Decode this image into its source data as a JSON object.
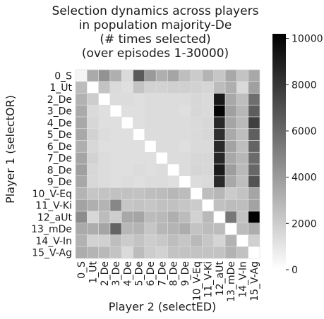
{
  "chart_data": {
    "type": "heatmap",
    "title_lines": [
      "Selection dynamics across players",
      "in population majority-De",
      "(# times selected)",
      "(over episodes 1-30000)"
    ],
    "xlabel": "Player 2 (selectED)",
    "ylabel": "Player 1 (selectOR)",
    "x_categories": [
      "0_S",
      "1_Ut",
      "2_De",
      "3_De",
      "4_De",
      "5_De",
      "6_De",
      "7_De",
      "8_De",
      "9_De",
      "10_V-Eq",
      "11_V-Ki",
      "12_aUt",
      "13_mDe",
      "14_V-In",
      "15_V-Ag"
    ],
    "y_categories": [
      "0_S",
      "1_Ut",
      "2_De",
      "3_De",
      "4_De",
      "5_De",
      "6_De",
      "7_De",
      "8_De",
      "9_De",
      "10_V-Eq",
      "11_V-Ki",
      "12_aUt",
      "13_mDe",
      "14_V-In",
      "15_V-Ag"
    ],
    "colorbar": {
      "min": 0,
      "max": 10200,
      "ticks": [
        0,
        2000,
        4000,
        6000,
        8000,
        10000
      ],
      "tick_labels": [
        "0",
        "2000",
        "4000",
        "6000",
        "8000",
        "10000"
      ],
      "colormap": "Greys (white = low, black = high)"
    },
    "values": [
      [
        400,
        3400,
        4300,
        3200,
        1500,
        6600,
        4100,
        3200,
        3600,
        2600,
        2100,
        3000,
        2300,
        3500,
        2400,
        3500
      ],
      [
        2700,
        0,
        2400,
        1500,
        1300,
        2400,
        1800,
        1800,
        1900,
        1900,
        1800,
        1700,
        2700,
        3200,
        1500,
        3800
      ],
      [
        3100,
        2000,
        0,
        1400,
        1400,
        1300,
        1400,
        1400,
        1400,
        1400,
        1600,
        1500,
        9200,
        3500,
        2600,
        5800
      ],
      [
        3400,
        1500,
        1300,
        0,
        1300,
        1300,
        1400,
        1400,
        1400,
        1300,
        1600,
        1500,
        10000,
        3800,
        2900,
        6500
      ],
      [
        3500,
        1600,
        1300,
        1300,
        0,
        1300,
        1400,
        1400,
        1400,
        1400,
        1500,
        1600,
        8600,
        3600,
        2800,
        7700
      ],
      [
        3500,
        1800,
        1400,
        1300,
        1300,
        0,
        1400,
        1400,
        1400,
        1400,
        1500,
        1600,
        8300,
        3400,
        2600,
        6400
      ],
      [
        3200,
        1600,
        1300,
        1300,
        1300,
        1300,
        0,
        1400,
        1400,
        1300,
        1500,
        1500,
        8500,
        3700,
        2600,
        6200
      ],
      [
        3600,
        1800,
        1400,
        1300,
        1300,
        1300,
        1300,
        0,
        1400,
        1400,
        1600,
        1600,
        8600,
        3500,
        2900,
        5900
      ],
      [
        3800,
        1600,
        1400,
        1300,
        1300,
        1400,
        1300,
        1400,
        0,
        1400,
        1700,
        1600,
        9100,
        3900,
        2800,
        6100
      ],
      [
        3500,
        1600,
        1400,
        1300,
        1400,
        1300,
        1400,
        1400,
        1300,
        0,
        1400,
        1500,
        8500,
        3500,
        2600,
        6900
      ],
      [
        3000,
        2300,
        2400,
        2500,
        2500,
        2400,
        2600,
        2700,
        2900,
        2700,
        0,
        2600,
        2900,
        2100,
        2400,
        3600
      ],
      [
        3700,
        3200,
        3000,
        4800,
        2300,
        2400,
        2300,
        2500,
        2500,
        2300,
        2100,
        0,
        2500,
        2700,
        2600,
        3700
      ],
      [
        4600,
        1600,
        2700,
        2000,
        3500,
        3600,
        2700,
        2800,
        3200,
        2700,
        1800,
        2800,
        0,
        5400,
        2400,
        10200
      ],
      [
        3400,
        3300,
        3600,
        6200,
        2900,
        3000,
        2300,
        2900,
        3000,
        3300,
        2400,
        2700,
        2700,
        0,
        2700,
        3300
      ],
      [
        3100,
        1800,
        1900,
        2600,
        2100,
        2400,
        2000,
        2200,
        2600,
        2300,
        2800,
        2300,
        1700,
        3100,
        0,
        1900
      ],
      [
        3300,
        3000,
        2800,
        2400,
        1500,
        2700,
        2000,
        1800,
        2400,
        2400,
        2400,
        2400,
        2400,
        3100,
        2500,
        0
      ]
    ]
  }
}
